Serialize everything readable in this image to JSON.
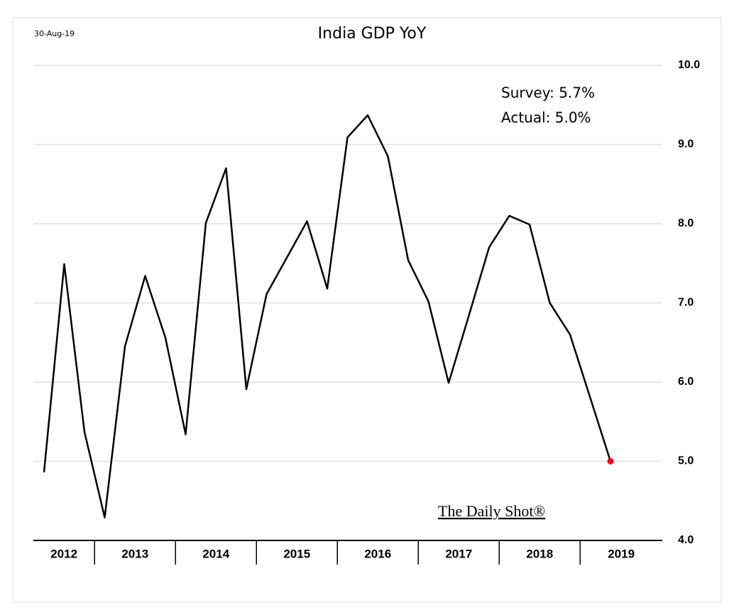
{
  "chart_data": {
    "type": "line",
    "title": "India GDP YoY",
    "date_note": "30-Aug-19",
    "annotations": [
      "Survey: 5.7%",
      "Actual:  5.0%"
    ],
    "watermark": "The Daily Shot®",
    "categories": [
      "2012",
      null,
      null,
      "2013",
      null,
      null,
      null,
      "2014",
      null,
      null,
      null,
      "2015",
      null,
      null,
      null,
      "2016",
      null,
      null,
      null,
      "2017",
      null,
      null,
      null,
      "2018",
      null,
      null,
      null,
      "2019",
      null
    ],
    "series": [
      {
        "name": "India GDP YoY",
        "color": "#000000",
        "values": [
          4.86,
          7.49,
          5.37,
          4.29,
          6.45,
          7.34,
          6.56,
          5.34,
          8.01,
          8.7,
          5.91,
          7.11,
          7.57,
          8.03,
          7.18,
          9.09,
          9.37,
          8.85,
          7.54,
          7.02,
          5.99,
          6.84,
          7.7,
          8.1,
          7.99,
          7.0,
          6.6,
          5.8,
          5.0
        ]
      }
    ],
    "last_point_color": "#ff0000",
    "ylim": [
      4,
      10
    ],
    "yticks": [
      {
        "value": 4,
        "label": "4.0"
      },
      {
        "value": 5,
        "label": "5.0"
      },
      {
        "value": 6,
        "label": "6.0"
      },
      {
        "value": 7,
        "label": "7.0"
      },
      {
        "value": 8,
        "label": "8.0"
      },
      {
        "value": 9,
        "label": "9.0"
      },
      {
        "value": 10,
        "label": "10.0"
      }
    ],
    "grid": true
  }
}
